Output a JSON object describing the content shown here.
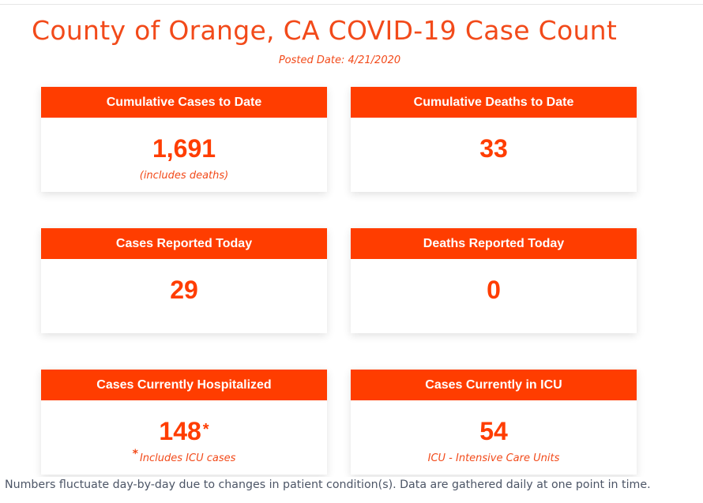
{
  "title": "County of Orange, CA COVID-19 Case Count",
  "posted_date": "Posted Date: 4/21/2020",
  "cards": [
    {
      "label": "Cumulative Cases to Date",
      "value": "1,691",
      "note": "(includes deaths)"
    },
    {
      "label": "Cumulative Deaths to Date",
      "value": "33"
    },
    {
      "label": "Cases Reported Today",
      "value": "29"
    },
    {
      "label": "Deaths Reported Today",
      "value": "0"
    },
    {
      "label": "Cases Currently Hospitalized",
      "value": "148",
      "value_suffix": "*",
      "note_star": "*",
      "note": "Includes ICU cases"
    },
    {
      "label": "Cases Currently in ICU",
      "value": "54",
      "note": "ICU - Intensive Care Units"
    }
  ],
  "footer": "Numbers fluctuate day-by-day due to changes in patient condition(s). Data are gathered daily at one point in time.",
  "colors": {
    "accent": "#ff3d00",
    "title": "#f24a1a",
    "footer_text": "#4c5566"
  }
}
